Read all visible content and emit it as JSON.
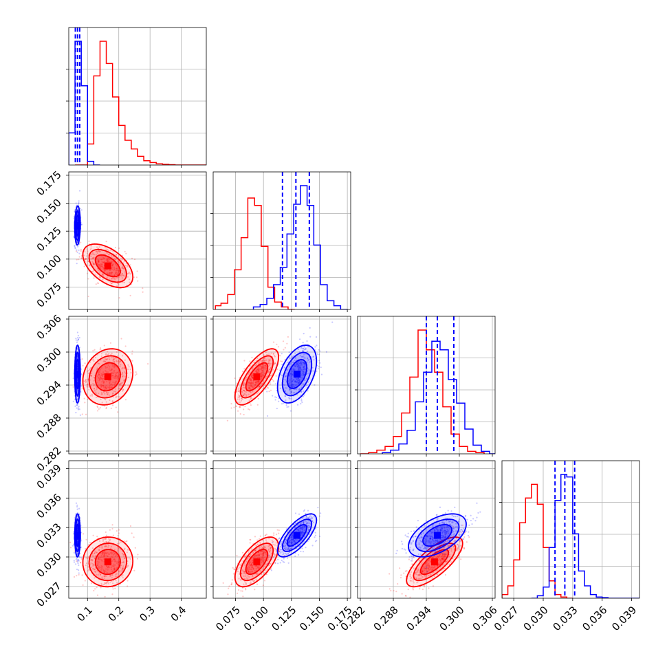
{
  "chart_data": {
    "type": "corner",
    "grid": true,
    "parameters": [
      {
        "range": [
          0.04,
          0.48
        ],
        "ticks": [
          "0.1",
          "0.2",
          "0.3",
          "0.4"
        ],
        "tick_values": [
          0.1,
          0.2,
          0.3,
          0.4
        ]
      },
      {
        "range": [
          0.055,
          0.178
        ],
        "ticks": [
          "0.075",
          "0.100",
          "0.125",
          "0.150",
          "0.175"
        ],
        "tick_values": [
          0.075,
          0.1,
          0.125,
          0.15,
          0.175
        ]
      },
      {
        "range": [
          0.2815,
          0.3065
        ],
        "ticks": [
          "0.282",
          "0.288",
          "0.294",
          "0.300",
          "0.306"
        ],
        "tick_values": [
          0.282,
          0.288,
          0.294,
          0.3,
          0.306
        ]
      },
      {
        "range": [
          0.0258,
          0.0398
        ],
        "ticks": [
          "0.027",
          "0.030",
          "0.033",
          "0.036",
          "0.039"
        ],
        "tick_values": [
          0.027,
          0.03,
          0.033,
          0.036,
          0.039
        ]
      }
    ],
    "series": [
      {
        "color": "#ff0000",
        "hist": [
          {
            "bins": [
              0.06,
              0.1,
              0.12,
              0.14,
              0.16,
              0.18,
              0.2,
              0.22,
              0.24,
              0.26,
              0.28,
              0.3,
              0.32,
              0.34,
              0.36,
              0.38,
              0.48
            ],
            "counts": [
              0.0,
              0.17,
              0.72,
              1.0,
              0.82,
              0.55,
              0.32,
              0.2,
              0.13,
              0.07,
              0.035,
              0.02,
              0.01,
              0.006,
              0.003,
              0.0
            ]
          },
          {
            "bins": [
              0.057,
              0.062,
              0.068,
              0.074,
              0.08,
              0.086,
              0.092,
              0.098,
              0.104,
              0.11,
              0.116,
              0.122,
              0.128
            ],
            "counts": [
              0.03,
              0.05,
              0.12,
              0.32,
              0.58,
              0.9,
              0.84,
              0.51,
              0.18,
              0.06,
              0.02,
              0.0
            ]
          },
          {
            "bins": [
              0.282,
              0.2835,
              0.285,
              0.2865,
              0.288,
              0.2895,
              0.291,
              0.2925,
              0.294,
              0.2955,
              0.297,
              0.2985,
              0.3,
              0.3015,
              0.303,
              0.3045
            ],
            "counts": [
              0.0,
              0.01,
              0.03,
              0.06,
              0.14,
              0.33,
              0.62,
              1.0,
              0.84,
              0.66,
              0.38,
              0.16,
              0.06,
              0.02,
              0.01
            ]
          },
          {
            "bins": [
              0.0258,
              0.0264,
              0.027,
              0.0276,
              0.0282,
              0.0288,
              0.0294,
              0.03,
              0.0306,
              0.0312,
              0.0318,
              0.0324,
              0.033
            ],
            "counts": [
              0.03,
              0.1,
              0.31,
              0.61,
              0.81,
              0.92,
              0.76,
              0.41,
              0.14,
              0.03,
              0.01,
              0.0
            ]
          }
        ],
        "mean": [
          0.165,
          0.094,
          0.2955,
          0.0295
        ],
        "cov": [
          [
            0.0016,
            -0.0002,
            1.6e-05,
            1.5e-06
          ],
          [
            -0.0002,
            9.5e-05,
            1.75e-05,
            7.6e-06
          ],
          [
            1.6e-05,
            1.75e-05,
            6.5e-06,
            2.4e-06
          ],
          [
            1.5e-06,
            7.6e-06,
            2.4e-06,
            1.6e-06
          ]
        ]
      },
      {
        "color": "#0000ff",
        "quantile_lines": [
          [
            0.061,
            0.068,
            0.075
          ],
          [
            0.117,
            0.129,
            0.141
          ],
          [
            0.294,
            0.296,
            0.299
          ],
          [
            0.0312,
            0.0322,
            0.0332
          ]
        ],
        "hist": [
          {
            "bins": [
              0.04,
              0.06,
              0.08,
              0.1,
              0.12,
              0.14
            ],
            "counts": [
              0.26,
              1.0,
              0.64,
              0.03,
              0.0
            ]
          },
          {
            "bins": [
              0.091,
              0.097,
              0.103,
              0.109,
              0.115,
              0.121,
              0.127,
              0.133,
              0.139,
              0.145,
              0.151,
              0.157,
              0.163,
              0.169,
              0.175
            ],
            "counts": [
              0.02,
              0.04,
              0.09,
              0.2,
              0.34,
              0.61,
              0.85,
              1.0,
              0.84,
              0.52,
              0.2,
              0.07,
              0.03,
              0.0
            ]
          },
          {
            "bins": [
              0.286,
              0.2875,
              0.289,
              0.2905,
              0.292,
              0.2935,
              0.295,
              0.2965,
              0.298,
              0.2995,
              0.301,
              0.3025,
              0.304,
              0.3055,
              0.307
            ],
            "counts": [
              0.01,
              0.03,
              0.08,
              0.19,
              0.42,
              0.66,
              0.91,
              0.84,
              0.6,
              0.41,
              0.2,
              0.07,
              0.02,
              0.0
            ]
          },
          {
            "bins": [
              0.0288,
              0.0294,
              0.03,
              0.0306,
              0.0312,
              0.0318,
              0.0324,
              0.033,
              0.0336,
              0.0342,
              0.0348,
              0.0354,
              0.036,
              0.0366,
              0.0398
            ],
            "counts": [
              0.0,
              0.02,
              0.09,
              0.41,
              0.79,
              1.0,
              0.98,
              0.52,
              0.22,
              0.1,
              0.03,
              0.01,
              0.005,
              0.0
            ]
          }
        ],
        "mean": [
          0.068,
          0.13,
          0.296,
          0.0322
        ],
        "cov": [
          [
            1.95e-05,
            3.5e-06,
            2e-07,
            5e-08
          ],
          [
            3.5e-06,
            7.6e-05,
            1.04e-05,
            6.8e-06
          ],
          [
            2e-07,
            1.04e-05,
            6.9e-06,
            1.5e-06
          ],
          [
            5e-08,
            6.8e-06,
            1.5e-06,
            1.2e-06
          ]
        ]
      }
    ]
  }
}
